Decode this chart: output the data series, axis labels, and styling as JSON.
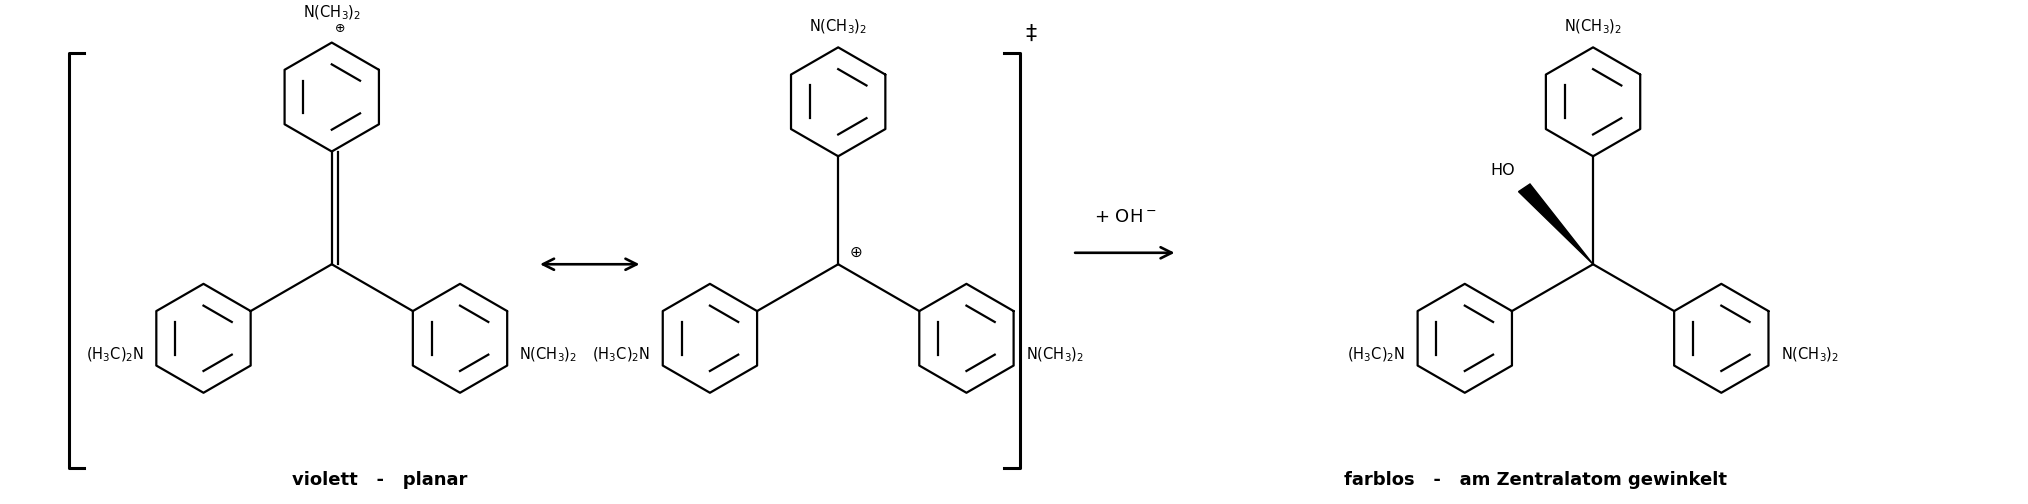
{
  "bg_color": "#ffffff",
  "line_color": "#000000",
  "text_color": "#000000",
  "figsize": [
    20.28,
    5.04
  ],
  "dpi": 100,
  "label_bottom_left": "violett   -   planar",
  "label_bottom_right": "farblos   -   am Zentralatom gewinkelt",
  "label_fontsize": 13,
  "label_fontweight": "bold",
  "fs_chem": 10.5
}
